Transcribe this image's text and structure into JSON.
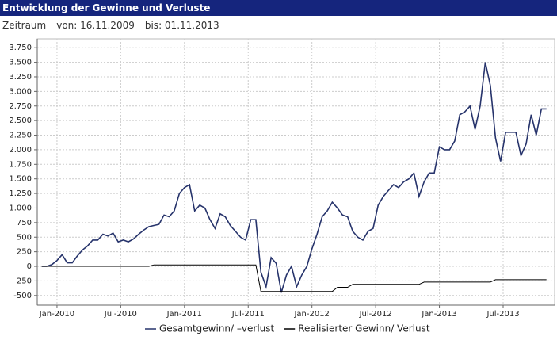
{
  "header": {
    "title": "Entwicklung der Gewinne und Verluste",
    "period": "Zeitraum",
    "from": "von: 16.11.2009",
    "to": "bis: 01.11.2013"
  },
  "chart_data": {
    "type": "line",
    "x": [
      2009.88,
      2009.92,
      2009.96,
      2010.0,
      2010.04,
      2010.08,
      2010.12,
      2010.16,
      2010.2,
      2010.24,
      2010.28,
      2010.32,
      2010.36,
      2010.4,
      2010.44,
      2010.48,
      2010.52,
      2010.56,
      2010.6,
      2010.64,
      2010.68,
      2010.72,
      2010.76,
      2010.8,
      2010.84,
      2010.88,
      2010.92,
      2010.96,
      2011.0,
      2011.04,
      2011.08,
      2011.12,
      2011.16,
      2011.2,
      2011.24,
      2011.28,
      2011.32,
      2011.36,
      2011.4,
      2011.44,
      2011.48,
      2011.52,
      2011.56,
      2011.6,
      2011.64,
      2011.68,
      2011.72,
      2011.76,
      2011.8,
      2011.84,
      2011.88,
      2011.92,
      2011.96,
      2012.0,
      2012.04,
      2012.08,
      2012.12,
      2012.16,
      2012.2,
      2012.24,
      2012.28,
      2012.32,
      2012.36,
      2012.4,
      2012.44,
      2012.48,
      2012.52,
      2012.56,
      2012.6,
      2012.64,
      2012.68,
      2012.72,
      2012.76,
      2012.8,
      2012.84,
      2012.88,
      2012.92,
      2012.96,
      2013.0,
      2013.04,
      2013.08,
      2013.12,
      2013.16,
      2013.2,
      2013.24,
      2013.28,
      2013.32,
      2013.36,
      2013.4,
      2013.44,
      2013.48,
      2013.52,
      2013.56,
      2013.6,
      2013.64,
      2013.68,
      2013.72,
      2013.76,
      2013.8,
      2013.84
    ],
    "series": [
      {
        "name": "Gesamtgewinn/ –verlust",
        "color": "#26336b",
        "values": [
          0,
          0,
          30,
          100,
          200,
          60,
          60,
          180,
          280,
          350,
          450,
          450,
          550,
          520,
          570,
          420,
          450,
          420,
          470,
          550,
          620,
          680,
          700,
          720,
          880,
          850,
          950,
          1250,
          1350,
          1400,
          950,
          1050,
          1000,
          800,
          650,
          900,
          850,
          700,
          600,
          500,
          450,
          800,
          800,
          -100,
          -350,
          150,
          50,
          -450,
          -150,
          0,
          -350,
          -150,
          0,
          300,
          550,
          850,
          950,
          1100,
          1000,
          880,
          850,
          600,
          500,
          450,
          600,
          650,
          1050,
          1200,
          1300,
          1400,
          1350,
          1450,
          1500,
          1600,
          1200,
          1450,
          1600,
          1600,
          2050,
          2000,
          2000,
          2150,
          2600,
          2650,
          2750,
          2350,
          2750,
          3500,
          3100,
          2200,
          1800,
          2300,
          2300,
          2300,
          1900,
          2100,
          2600,
          2250,
          2700,
          2700
        ]
      },
      {
        "name": "Realisierter Gewinn/ Verlust",
        "color": "#000000",
        "values": [
          0,
          0,
          0,
          0,
          0,
          0,
          0,
          0,
          0,
          0,
          0,
          0,
          0,
          0,
          0,
          0,
          0,
          0,
          0,
          0,
          0,
          0,
          25,
          25,
          25,
          25,
          25,
          25,
          25,
          25,
          25,
          25,
          25,
          25,
          25,
          25,
          25,
          25,
          25,
          25,
          25,
          25,
          25,
          -430,
          -430,
          -430,
          -430,
          -430,
          -430,
          -430,
          -430,
          -430,
          -430,
          -430,
          -430,
          -430,
          -430,
          -430,
          -360,
          -360,
          -360,
          -310,
          -310,
          -310,
          -310,
          -310,
          -310,
          -310,
          -310,
          -310,
          -310,
          -310,
          -310,
          -310,
          -310,
          -270,
          -270,
          -270,
          -270,
          -270,
          -270,
          -270,
          -270,
          -270,
          -270,
          -270,
          -270,
          -270,
          -270,
          -230,
          -230,
          -230,
          -230,
          -230,
          -230,
          -230,
          -230,
          -230,
          -230,
          -230
        ]
      }
    ],
    "xlim": [
      2009.845,
      2013.904
    ],
    "xticks": [
      {
        "value": 2010.0,
        "label": "Jan-2010"
      },
      {
        "value": 2010.5,
        "label": "Jul-2010"
      },
      {
        "value": 2011.0,
        "label": "Jan-2011"
      },
      {
        "value": 2011.5,
        "label": "Jul-2011"
      },
      {
        "value": 2012.0,
        "label": "Jan-2012"
      },
      {
        "value": 2012.5,
        "label": "Jul-2012"
      },
      {
        "value": 2013.0,
        "label": "Jan-2013"
      },
      {
        "value": 2013.5,
        "label": "Jul-2013"
      }
    ],
    "ylim": [
      -625,
      3875
    ],
    "yticks": [
      -500,
      -250,
      0,
      250,
      500,
      750,
      {
        "value": 1000,
        "label": "1.000"
      },
      {
        "value": 1250,
        "label": "1.250"
      },
      {
        "value": 1500,
        "label": "1.500"
      },
      {
        "value": 1750,
        "label": "1.750"
      },
      {
        "value": 2000,
        "label": "2.000"
      },
      {
        "value": 2250,
        "label": "2.250"
      },
      {
        "value": 2500,
        "label": "2.500"
      },
      {
        "value": 2750,
        "label": "2.750"
      },
      {
        "value": 3000,
        "label": "3.000"
      },
      {
        "value": 3250,
        "label": "3.250"
      },
      {
        "value": 3500,
        "label": "3.500"
      },
      {
        "value": 3750,
        "label": "3.750"
      }
    ],
    "grid": true,
    "legend": "bottom"
  }
}
